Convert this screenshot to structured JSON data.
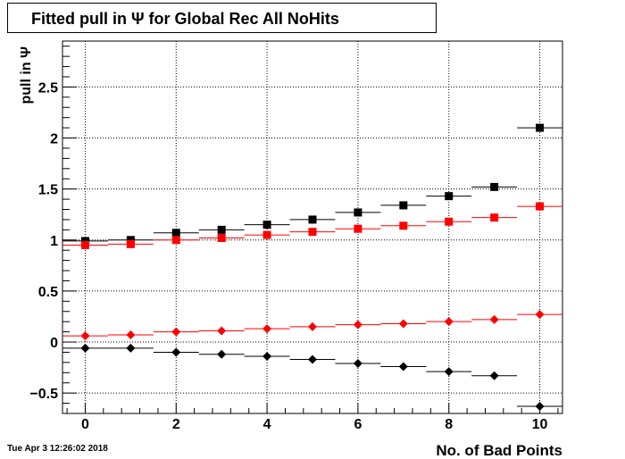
{
  "chart_data": {
    "type": "scatter",
    "title": "Fitted pull in  Ψ  for Global Rec All NoHits",
    "xlabel": "No. of Bad Points",
    "ylabel": "pull in  Ψ",
    "xlim": [
      -0.5,
      10.5
    ],
    "ylim": [
      -0.7,
      2.95
    ],
    "xticks": [
      "0",
      "2",
      "4",
      "6",
      "8",
      "10"
    ],
    "yticks": [
      "−0.5",
      "0",
      "0.5",
      "1",
      "1.5",
      "2",
      "2.5"
    ],
    "grid": true,
    "x": [
      0,
      1,
      2,
      3,
      4,
      5,
      6,
      7,
      8,
      9,
      10
    ],
    "series": [
      {
        "marker": "square",
        "color": "#000000",
        "values": [
          0.99,
          1.0,
          1.07,
          1.1,
          1.15,
          1.2,
          1.27,
          1.34,
          1.43,
          1.52,
          2.1
        ]
      },
      {
        "marker": "square",
        "color": "#ff0000",
        "values": [
          0.95,
          0.96,
          1.0,
          1.02,
          1.05,
          1.08,
          1.11,
          1.14,
          1.18,
          1.22,
          1.33
        ]
      },
      {
        "marker": "diamond",
        "color": "#ff0000",
        "values": [
          0.06,
          0.07,
          0.1,
          0.11,
          0.13,
          0.15,
          0.17,
          0.18,
          0.2,
          0.22,
          0.27
        ]
      },
      {
        "marker": "diamond",
        "color": "#000000",
        "values": [
          -0.06,
          -0.06,
          -0.1,
          -0.12,
          -0.14,
          -0.17,
          -0.21,
          -0.24,
          -0.29,
          -0.33,
          -0.63
        ]
      }
    ]
  },
  "datestamp": "Tue Apr  3 12:26:02 2018"
}
